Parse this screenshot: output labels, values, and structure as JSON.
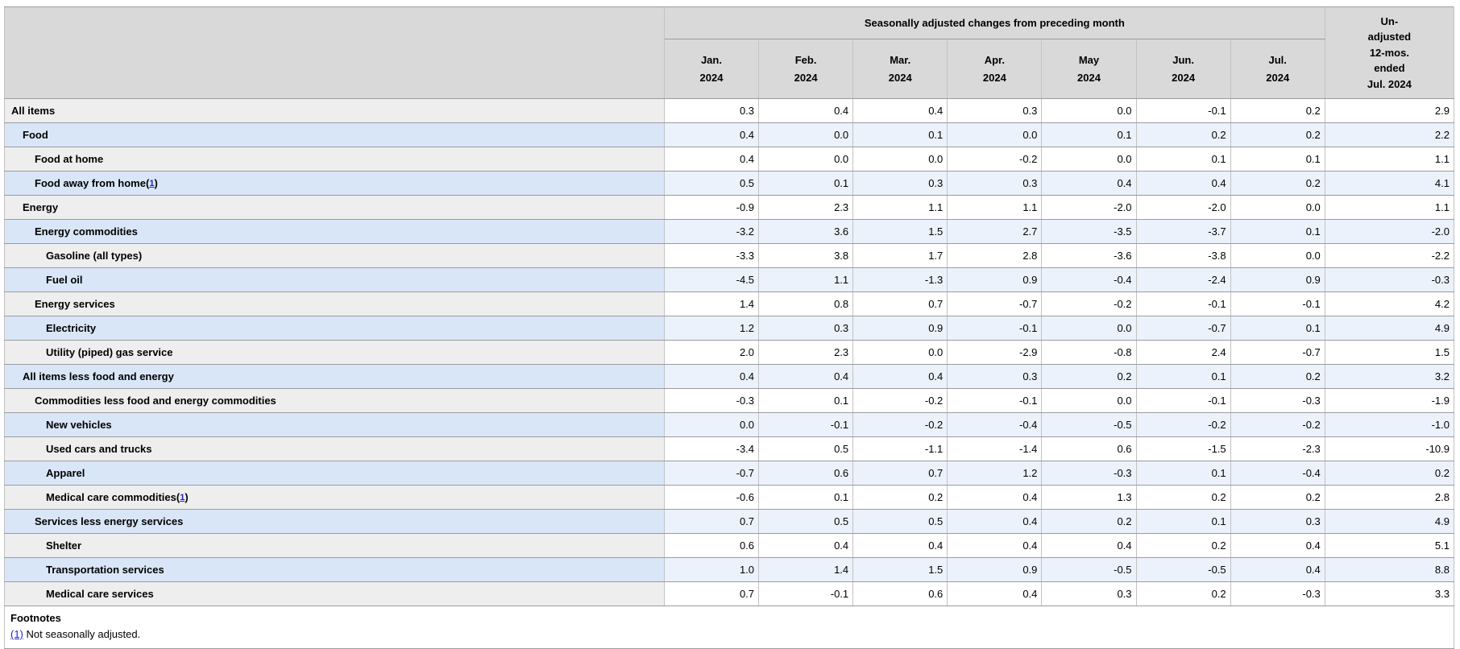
{
  "table": {
    "group_header": "Seasonally adjusted changes from preceding month",
    "unadjusted_header_lines": [
      "Un-",
      "adjusted",
      "12-mos.",
      "ended",
      "Jul. 2024"
    ],
    "month_headers": [
      {
        "line1": "Jan.",
        "line2": "2024"
      },
      {
        "line1": "Feb.",
        "line2": "2024"
      },
      {
        "line1": "Mar.",
        "line2": "2024"
      },
      {
        "line1": "Apr.",
        "line2": "2024"
      },
      {
        "line1": "May",
        "line2": "2024"
      },
      {
        "line1": "Jun.",
        "line2": "2024"
      },
      {
        "line1": "Jul.",
        "line2": "2024"
      }
    ],
    "rows": [
      {
        "label": "All items",
        "indent": 0,
        "values": [
          "0.3",
          "0.4",
          "0.4",
          "0.3",
          "0.0",
          "-0.1",
          "0.2",
          "2.9"
        ]
      },
      {
        "label": "Food",
        "indent": 1,
        "values": [
          "0.4",
          "0.0",
          "0.1",
          "0.0",
          "0.1",
          "0.2",
          "0.2",
          "2.2"
        ]
      },
      {
        "label": "Food at home",
        "indent": 2,
        "values": [
          "0.4",
          "0.0",
          "0.0",
          "-0.2",
          "0.0",
          "0.1",
          "0.1",
          "1.1"
        ]
      },
      {
        "label": "Food away from home",
        "indent": 2,
        "footnote_ref": {
          "open": "(",
          "num": "1",
          "close": ")"
        },
        "values": [
          "0.5",
          "0.1",
          "0.3",
          "0.3",
          "0.4",
          "0.4",
          "0.2",
          "4.1"
        ]
      },
      {
        "label": "Energy",
        "indent": 1,
        "values": [
          "-0.9",
          "2.3",
          "1.1",
          "1.1",
          "-2.0",
          "-2.0",
          "0.0",
          "1.1"
        ]
      },
      {
        "label": "Energy commodities",
        "indent": 2,
        "values": [
          "-3.2",
          "3.6",
          "1.5",
          "2.7",
          "-3.5",
          "-3.7",
          "0.1",
          "-2.0"
        ]
      },
      {
        "label": "Gasoline (all types)",
        "indent": 3,
        "values": [
          "-3.3",
          "3.8",
          "1.7",
          "2.8",
          "-3.6",
          "-3.8",
          "0.0",
          "-2.2"
        ]
      },
      {
        "label": "Fuel oil",
        "indent": 3,
        "values": [
          "-4.5",
          "1.1",
          "-1.3",
          "0.9",
          "-0.4",
          "-2.4",
          "0.9",
          "-0.3"
        ]
      },
      {
        "label": "Energy services",
        "indent": 2,
        "values": [
          "1.4",
          "0.8",
          "0.7",
          "-0.7",
          "-0.2",
          "-0.1",
          "-0.1",
          "4.2"
        ]
      },
      {
        "label": "Electricity",
        "indent": 3,
        "values": [
          "1.2",
          "0.3",
          "0.9",
          "-0.1",
          "0.0",
          "-0.7",
          "0.1",
          "4.9"
        ]
      },
      {
        "label": "Utility (piped) gas service",
        "indent": 3,
        "values": [
          "2.0",
          "2.3",
          "0.0",
          "-2.9",
          "-0.8",
          "2.4",
          "-0.7",
          "1.5"
        ]
      },
      {
        "label": "All items less food and energy",
        "indent": 1,
        "values": [
          "0.4",
          "0.4",
          "0.4",
          "0.3",
          "0.2",
          "0.1",
          "0.2",
          "3.2"
        ]
      },
      {
        "label": "Commodities less food and energy commodities",
        "indent": 2,
        "values": [
          "-0.3",
          "0.1",
          "-0.2",
          "-0.1",
          "0.0",
          "-0.1",
          "-0.3",
          "-1.9"
        ]
      },
      {
        "label": "New vehicles",
        "indent": 3,
        "values": [
          "0.0",
          "-0.1",
          "-0.2",
          "-0.4",
          "-0.5",
          "-0.2",
          "-0.2",
          "-1.0"
        ]
      },
      {
        "label": "Used cars and trucks",
        "indent": 3,
        "values": [
          "-3.4",
          "0.5",
          "-1.1",
          "-1.4",
          "0.6",
          "-1.5",
          "-2.3",
          "-10.9"
        ]
      },
      {
        "label": "Apparel",
        "indent": 3,
        "values": [
          "-0.7",
          "0.6",
          "0.7",
          "1.2",
          "-0.3",
          "0.1",
          "-0.4",
          "0.2"
        ]
      },
      {
        "label": "Medical care commodities",
        "indent": 3,
        "footnote_ref": {
          "open": "(",
          "num": "1",
          "close": ")"
        },
        "values": [
          "-0.6",
          "0.1",
          "0.2",
          "0.4",
          "1.3",
          "0.2",
          "0.2",
          "2.8"
        ]
      },
      {
        "label": "Services less energy services",
        "indent": 2,
        "values": [
          "0.7",
          "0.5",
          "0.5",
          "0.4",
          "0.2",
          "0.1",
          "0.3",
          "4.9"
        ]
      },
      {
        "label": "Shelter",
        "indent": 3,
        "values": [
          "0.6",
          "0.4",
          "0.4",
          "0.4",
          "0.4",
          "0.2",
          "0.4",
          "5.1"
        ]
      },
      {
        "label": "Transportation services",
        "indent": 3,
        "values": [
          "1.0",
          "1.4",
          "1.5",
          "0.9",
          "-0.5",
          "-0.5",
          "0.4",
          "8.8"
        ]
      },
      {
        "label": "Medical care services",
        "indent": 3,
        "values": [
          "0.7",
          "-0.1",
          "0.6",
          "0.4",
          "0.3",
          "0.2",
          "-0.3",
          "3.3"
        ]
      }
    ],
    "footnotes": {
      "title": "Footnotes",
      "items": [
        {
          "marker": "(1)",
          "text": "Not seasonally adjusted."
        }
      ]
    },
    "colors": {
      "header_bg": "#d9d9d9",
      "label_row_odd": "#eeeeee",
      "label_row_even": "#d9e6f8",
      "data_row_odd": "#ffffff",
      "data_row_even": "#ecf2fb",
      "border_h": "#9c9c9c",
      "border_v": "#c2c2c2",
      "link": "#2222cc",
      "text": "#000000"
    }
  }
}
